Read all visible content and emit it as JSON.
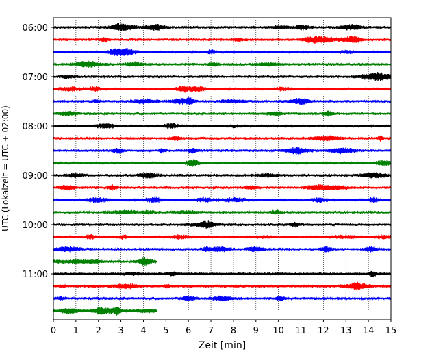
{
  "chart_data": {
    "type": "line",
    "xlabel": "Zeit  [min]",
    "ylabel": "UTC (Lokalzeit = UTC + 02:00)",
    "xlim": [
      0,
      15
    ],
    "x_ticks": [
      0,
      1,
      2,
      3,
      4,
      5,
      6,
      7,
      8,
      9,
      10,
      11,
      12,
      13,
      14,
      15
    ],
    "y_ticks": [
      "06:00",
      "07:00",
      "08:00",
      "09:00",
      "10:00",
      "11:00"
    ],
    "trace_interval_min": 15,
    "trace_colors": [
      "#000000",
      "#ff0000",
      "#0000ff",
      "#008000"
    ],
    "grid": "vertical dotted",
    "traces": [
      {
        "start": "06:00",
        "color": "#000000",
        "end_min": 15
      },
      {
        "start": "06:15",
        "color": "#ff0000",
        "end_min": 15
      },
      {
        "start": "06:30",
        "color": "#0000ff",
        "end_min": 15
      },
      {
        "start": "06:45",
        "color": "#008000",
        "end_min": 15
      },
      {
        "start": "07:00",
        "color": "#000000",
        "end_min": 15
      },
      {
        "start": "07:15",
        "color": "#ff0000",
        "end_min": 15
      },
      {
        "start": "07:30",
        "color": "#0000ff",
        "end_min": 15
      },
      {
        "start": "07:45",
        "color": "#008000",
        "end_min": 15
      },
      {
        "start": "08:00",
        "color": "#000000",
        "end_min": 15
      },
      {
        "start": "08:15",
        "color": "#ff0000",
        "end_min": 15
      },
      {
        "start": "08:30",
        "color": "#0000ff",
        "end_min": 15
      },
      {
        "start": "08:45",
        "color": "#008000",
        "end_min": 15
      },
      {
        "start": "09:00",
        "color": "#000000",
        "end_min": 15
      },
      {
        "start": "09:15",
        "color": "#ff0000",
        "end_min": 15
      },
      {
        "start": "09:30",
        "color": "#0000ff",
        "end_min": 15
      },
      {
        "start": "09:45",
        "color": "#008000",
        "end_min": 15
      },
      {
        "start": "10:00",
        "color": "#000000",
        "end_min": 15
      },
      {
        "start": "10:15",
        "color": "#ff0000",
        "end_min": 15
      },
      {
        "start": "10:30",
        "color": "#0000ff",
        "end_min": 15
      },
      {
        "start": "10:45",
        "color": "#008000",
        "end_min": 4.6
      },
      {
        "start": "11:00",
        "color": "#000000",
        "end_min": 15
      },
      {
        "start": "11:15",
        "color": "#ff0000",
        "end_min": 15
      },
      {
        "start": "11:30",
        "color": "#0000ff",
        "end_min": 15
      },
      {
        "start": "11:45",
        "color": "#008000",
        "end_min": 4.6
      }
    ]
  }
}
